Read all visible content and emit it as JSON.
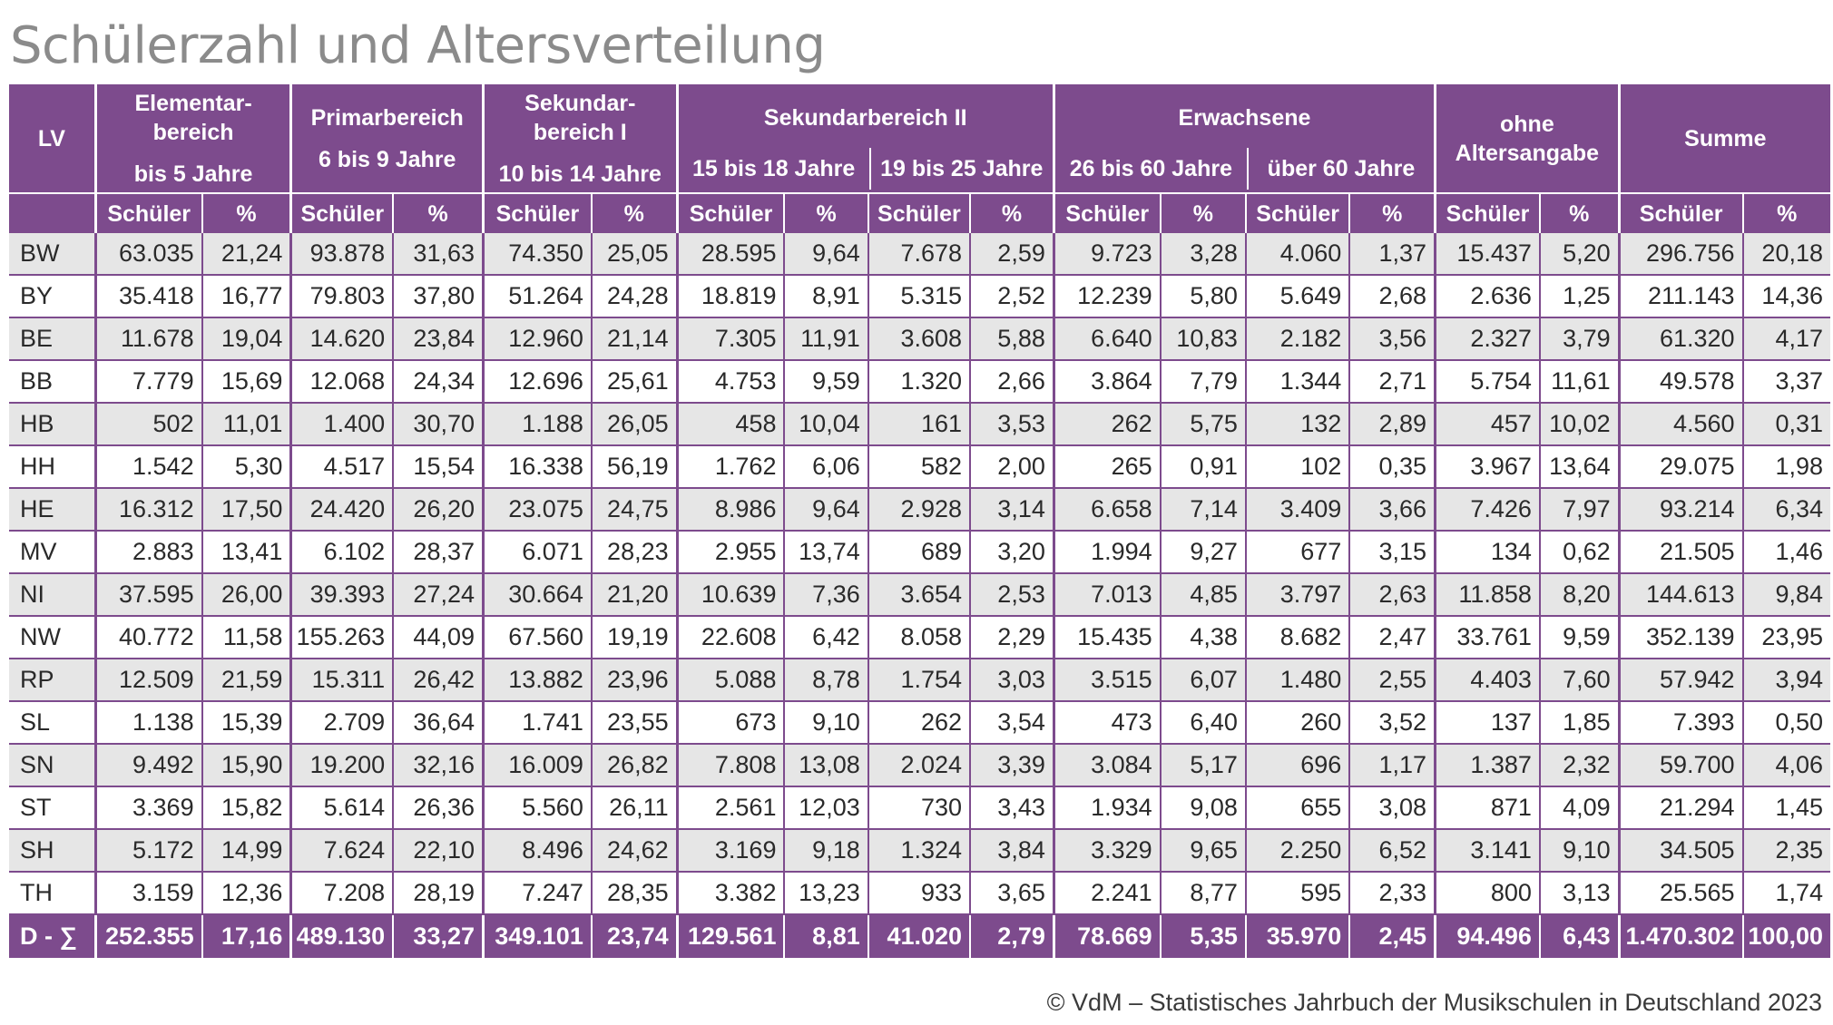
{
  "title": "Schülerzahl und Altersverteilung",
  "header": {
    "lv": "LV",
    "groups": {
      "elementar_l1": "Elementar-",
      "elementar_l2": "bereich",
      "primar": "Primarbereich",
      "sek1_l1": "Sekundar-",
      "sek1_l2": "bereich I",
      "sek2": "Sekundarbereich II",
      "erwachsene": "Erwachsene",
      "ohne_l1": "ohne",
      "ohne_l2": "Altersangabe",
      "summe": "Summe"
    },
    "ages": [
      "bis 5 Jahre",
      "6 bis 9 Jahre",
      "10 bis 14 Jahre",
      "15 bis 18 Jahre",
      "19 bis 25 Jahre",
      "26 bis 60 Jahre",
      "über 60 Jahre"
    ],
    "col_schueler": "Schüler",
    "col_pct": "%"
  },
  "rows": [
    {
      "lv": "BW",
      "v": [
        "63.035",
        "21,24",
        "93.878",
        "31,63",
        "74.350",
        "25,05",
        "28.595",
        "9,64",
        "7.678",
        "2,59",
        "9.723",
        "3,28",
        "4.060",
        "1,37",
        "15.437",
        "5,20",
        "296.756",
        "20,18"
      ]
    },
    {
      "lv": "BY",
      "v": [
        "35.418",
        "16,77",
        "79.803",
        "37,80",
        "51.264",
        "24,28",
        "18.819",
        "8,91",
        "5.315",
        "2,52",
        "12.239",
        "5,80",
        "5.649",
        "2,68",
        "2.636",
        "1,25",
        "211.143",
        "14,36"
      ]
    },
    {
      "lv": "BE",
      "v": [
        "11.678",
        "19,04",
        "14.620",
        "23,84",
        "12.960",
        "21,14",
        "7.305",
        "11,91",
        "3.608",
        "5,88",
        "6.640",
        "10,83",
        "2.182",
        "3,56",
        "2.327",
        "3,79",
        "61.320",
        "4,17"
      ]
    },
    {
      "lv": "BB",
      "v": [
        "7.779",
        "15,69",
        "12.068",
        "24,34",
        "12.696",
        "25,61",
        "4.753",
        "9,59",
        "1.320",
        "2,66",
        "3.864",
        "7,79",
        "1.344",
        "2,71",
        "5.754",
        "11,61",
        "49.578",
        "3,37"
      ]
    },
    {
      "lv": "HB",
      "v": [
        "502",
        "11,01",
        "1.400",
        "30,70",
        "1.188",
        "26,05",
        "458",
        "10,04",
        "161",
        "3,53",
        "262",
        "5,75",
        "132",
        "2,89",
        "457",
        "10,02",
        "4.560",
        "0,31"
      ]
    },
    {
      "lv": "HH",
      "v": [
        "1.542",
        "5,30",
        "4.517",
        "15,54",
        "16.338",
        "56,19",
        "1.762",
        "6,06",
        "582",
        "2,00",
        "265",
        "0,91",
        "102",
        "0,35",
        "3.967",
        "13,64",
        "29.075",
        "1,98"
      ]
    },
    {
      "lv": "HE",
      "v": [
        "16.312",
        "17,50",
        "24.420",
        "26,20",
        "23.075",
        "24,75",
        "8.986",
        "9,64",
        "2.928",
        "3,14",
        "6.658",
        "7,14",
        "3.409",
        "3,66",
        "7.426",
        "7,97",
        "93.214",
        "6,34"
      ]
    },
    {
      "lv": "MV",
      "v": [
        "2.883",
        "13,41",
        "6.102",
        "28,37",
        "6.071",
        "28,23",
        "2.955",
        "13,74",
        "689",
        "3,20",
        "1.994",
        "9,27",
        "677",
        "3,15",
        "134",
        "0,62",
        "21.505",
        "1,46"
      ]
    },
    {
      "lv": "NI",
      "v": [
        "37.595",
        "26,00",
        "39.393",
        "27,24",
        "30.664",
        "21,20",
        "10.639",
        "7,36",
        "3.654",
        "2,53",
        "7.013",
        "4,85",
        "3.797",
        "2,63",
        "11.858",
        "8,20",
        "144.613",
        "9,84"
      ]
    },
    {
      "lv": "NW",
      "v": [
        "40.772",
        "11,58",
        "155.263",
        "44,09",
        "67.560",
        "19,19",
        "22.608",
        "6,42",
        "8.058",
        "2,29",
        "15.435",
        "4,38",
        "8.682",
        "2,47",
        "33.761",
        "9,59",
        "352.139",
        "23,95"
      ]
    },
    {
      "lv": "RP",
      "v": [
        "12.509",
        "21,59",
        "15.311",
        "26,42",
        "13.882",
        "23,96",
        "5.088",
        "8,78",
        "1.754",
        "3,03",
        "3.515",
        "6,07",
        "1.480",
        "2,55",
        "4.403",
        "7,60",
        "57.942",
        "3,94"
      ]
    },
    {
      "lv": "SL",
      "v": [
        "1.138",
        "15,39",
        "2.709",
        "36,64",
        "1.741",
        "23,55",
        "673",
        "9,10",
        "262",
        "3,54",
        "473",
        "6,40",
        "260",
        "3,52",
        "137",
        "1,85",
        "7.393",
        "0,50"
      ]
    },
    {
      "lv": "SN",
      "v": [
        "9.492",
        "15,90",
        "19.200",
        "32,16",
        "16.009",
        "26,82",
        "7.808",
        "13,08",
        "2.024",
        "3,39",
        "3.084",
        "5,17",
        "696",
        "1,17",
        "1.387",
        "2,32",
        "59.700",
        "4,06"
      ]
    },
    {
      "lv": "ST",
      "v": [
        "3.369",
        "15,82",
        "5.614",
        "26,36",
        "5.560",
        "26,11",
        "2.561",
        "12,03",
        "730",
        "3,43",
        "1.934",
        "9,08",
        "655",
        "3,08",
        "871",
        "4,09",
        "21.294",
        "1,45"
      ]
    },
    {
      "lv": "SH",
      "v": [
        "5.172",
        "14,99",
        "7.624",
        "22,10",
        "8.496",
        "24,62",
        "3.169",
        "9,18",
        "1.324",
        "3,84",
        "3.329",
        "9,65",
        "2.250",
        "6,52",
        "3.141",
        "9,10",
        "34.505",
        "2,35"
      ]
    },
    {
      "lv": "TH",
      "v": [
        "3.159",
        "12,36",
        "7.208",
        "28,19",
        "7.247",
        "28,35",
        "3.382",
        "13,23",
        "933",
        "3,65",
        "2.241",
        "8,77",
        "595",
        "2,33",
        "800",
        "3,13",
        "25.565",
        "1,74"
      ]
    }
  ],
  "total": {
    "lv": "D - ∑",
    "v": [
      "252.355",
      "17,16",
      "489.130",
      "33,27",
      "349.101",
      "23,74",
      "129.561",
      "8,81",
      "41.020",
      "2,79",
      "78.669",
      "5,35",
      "35.970",
      "2,45",
      "94.496",
      "6,43",
      "1.470.302",
      "100,00"
    ]
  },
  "footer": "© VdM – Statistisches Jahrbuch der Musikschulen in Deutschland 2023"
}
